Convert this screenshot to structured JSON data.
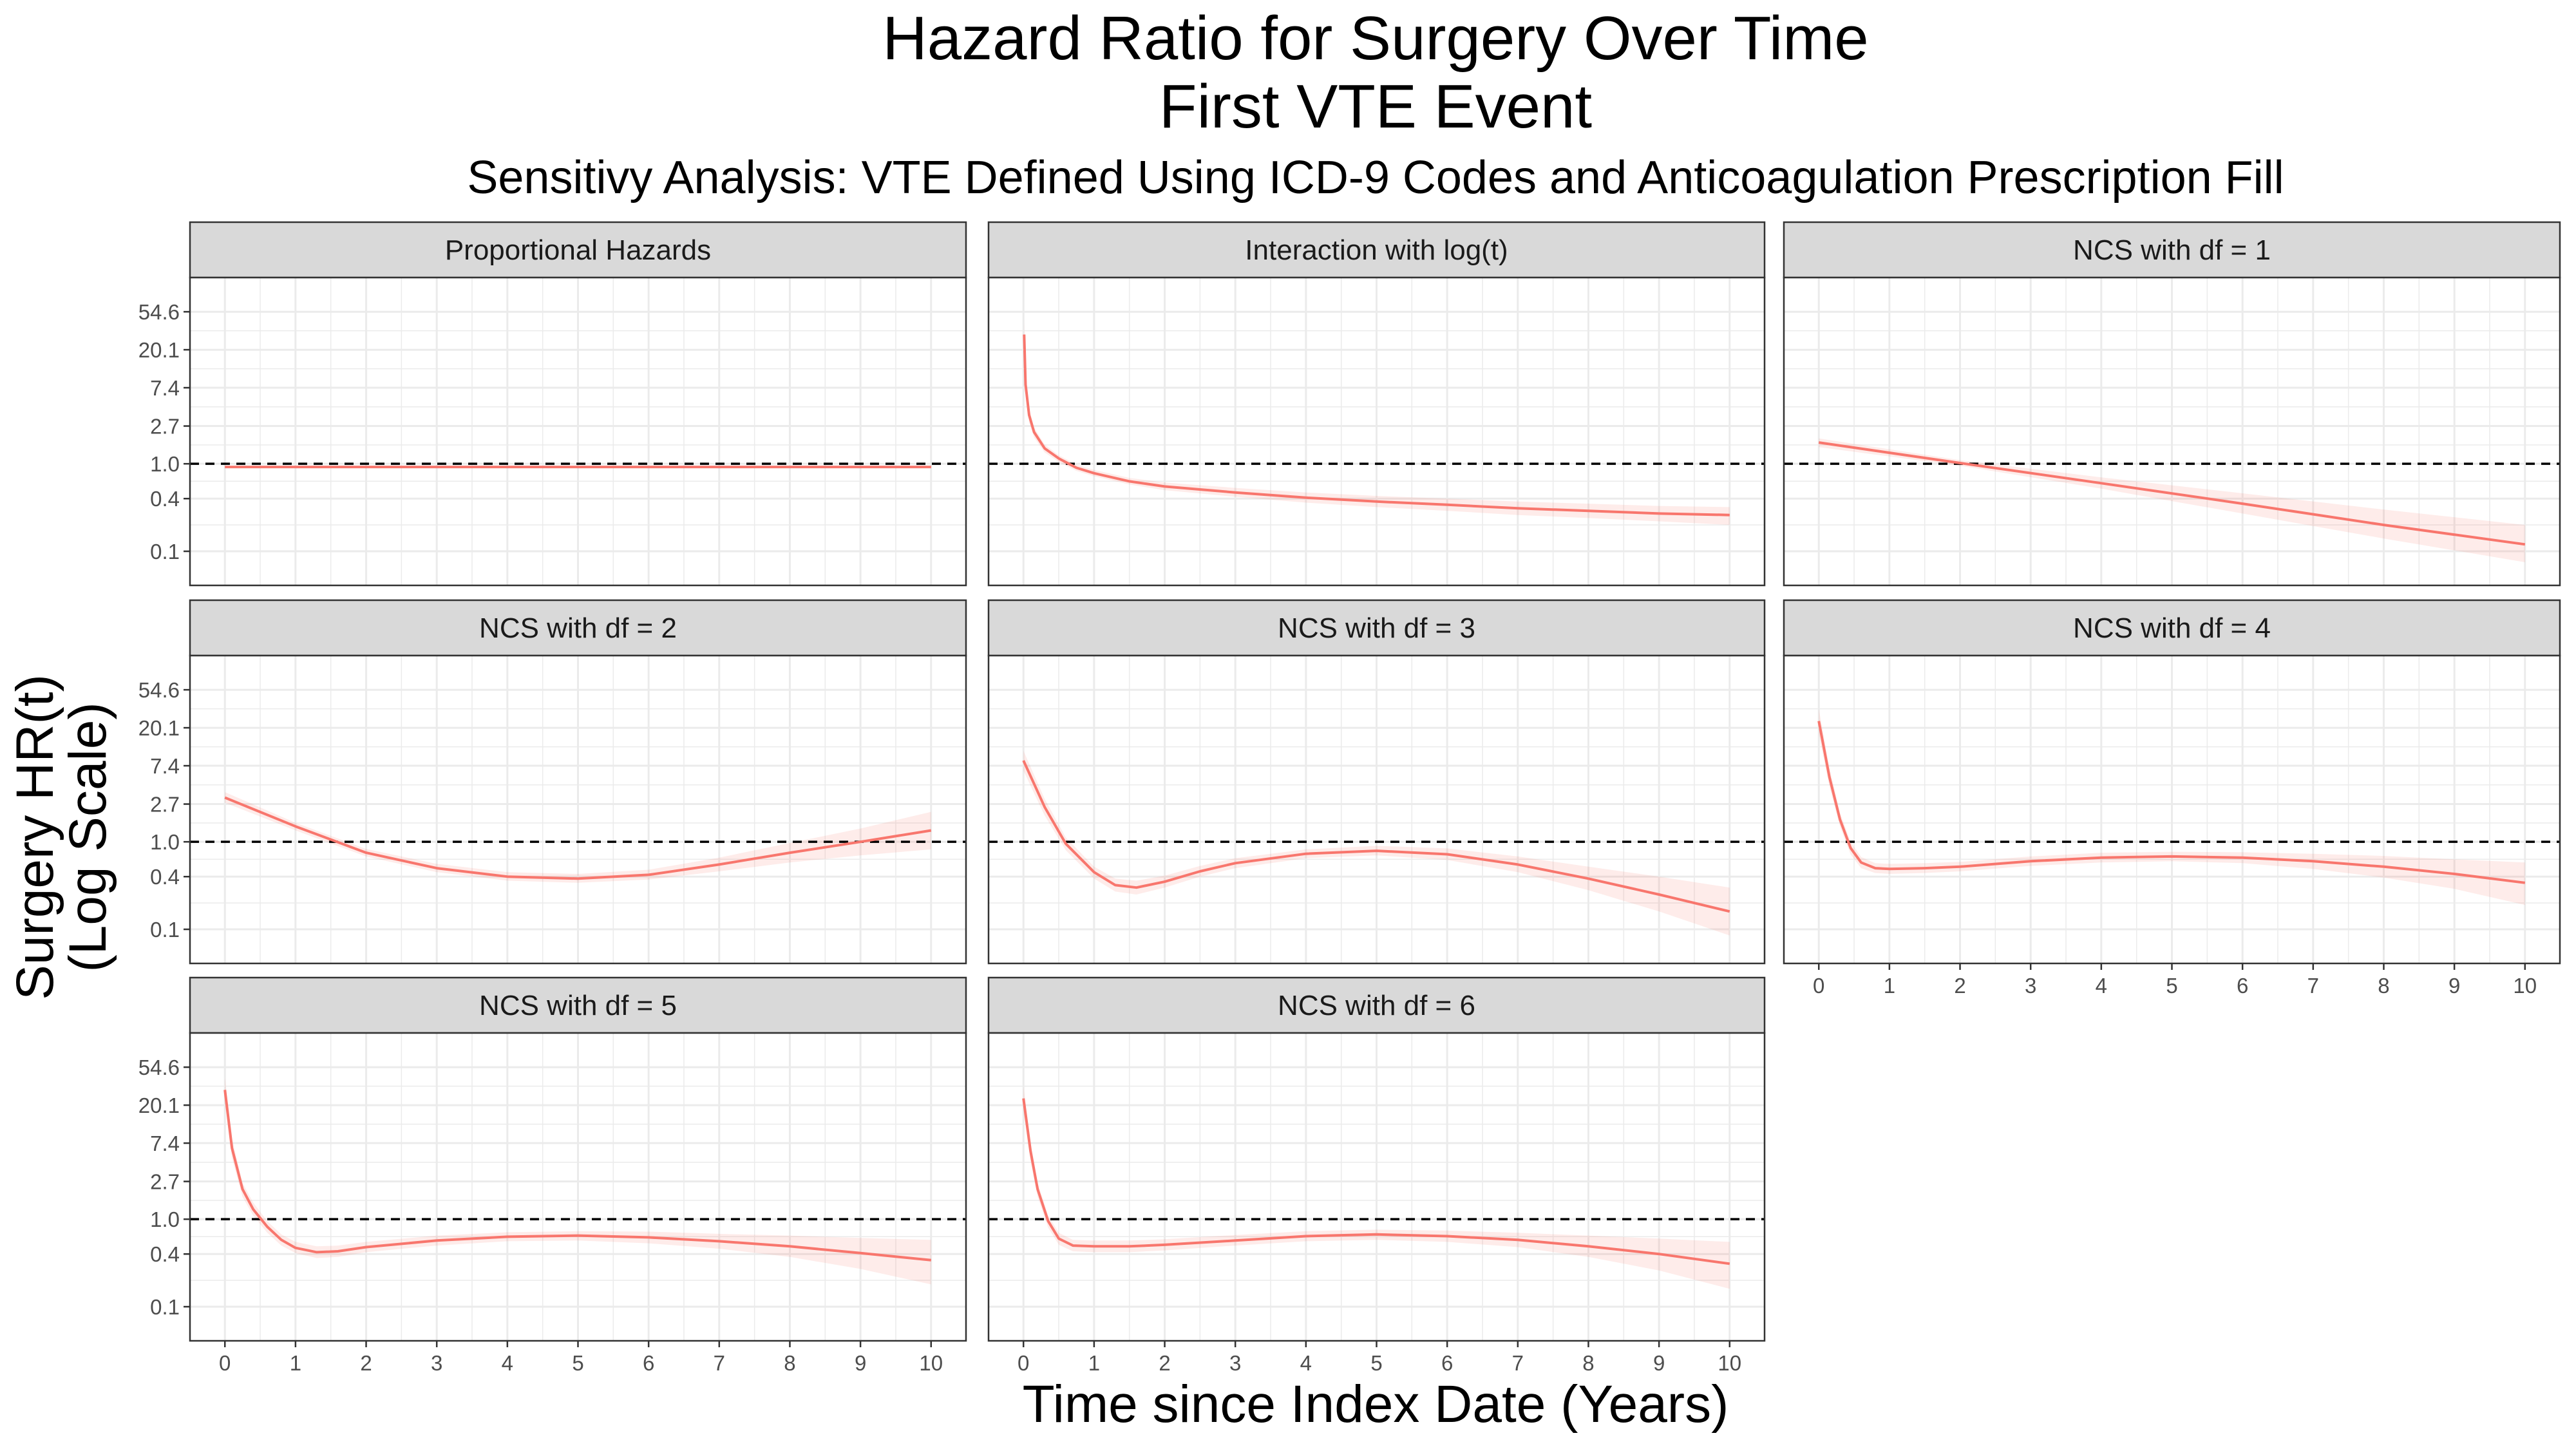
{
  "title_line1": "Hazard Ratio for Surgery Over Time",
  "title_line2": "First VTE Event",
  "subtitle": "Sensitivy Analysis: VTE Defined Using ICD-9 Codes and Anticoagulation Prescription Fill",
  "xlabel": "Time since Index Date (Years)",
  "ylabel_line1": "Surgery HR(t)",
  "ylabel_line2": "(Log Scale)",
  "colors": {
    "line": "#f8766d",
    "ribbon": "#f8766d",
    "strip_fill": "#d9d9d9",
    "reference": "#000000",
    "grid": "#ebebeb"
  },
  "chart_data": {
    "type": "line",
    "facet_layout": "3 columns, 3 rows (facet_wrap)",
    "y_scale": "log",
    "x_range": [
      0,
      10
    ],
    "y_range_log": [
      -3.2,
      4.9
    ],
    "x_ticks": [
      0,
      1,
      2,
      3,
      4,
      5,
      6,
      7,
      8,
      9,
      10
    ],
    "y_ticks": [
      {
        "label": "0.1",
        "value": 0.1
      },
      {
        "label": "0.4",
        "value": 0.4
      },
      {
        "label": "1.0",
        "value": 1.0
      },
      {
        "label": "2.7",
        "value": 2.7
      },
      {
        "label": "7.4",
        "value": 7.4
      },
      {
        "label": "20.1",
        "value": 20.1
      },
      {
        "label": "54.6",
        "value": 54.6
      }
    ],
    "reference_line": 1.0,
    "grid": true,
    "panels": [
      {
        "title": "Proportional Hazards",
        "x": [
          0,
          10
        ],
        "y": [
          0.92,
          0.92
        ],
        "lower": [
          0.89,
          0.89
        ],
        "upper": [
          0.95,
          0.95
        ]
      },
      {
        "title": "Interaction with log(t)",
        "x": [
          0.01,
          0.03,
          0.08,
          0.15,
          0.3,
          0.5,
          0.75,
          1,
          1.5,
          2,
          3,
          4,
          5,
          6,
          7,
          8,
          9,
          10
        ],
        "y": [
          30.0,
          8.0,
          3.6,
          2.3,
          1.5,
          1.15,
          0.9,
          0.78,
          0.63,
          0.55,
          0.47,
          0.41,
          0.37,
          0.34,
          0.31,
          0.29,
          0.27,
          0.26
        ],
        "lower": [
          20.0,
          6.2,
          3.0,
          2.0,
          1.35,
          1.05,
          0.83,
          0.72,
          0.58,
          0.5,
          0.42,
          0.36,
          0.32,
          0.29,
          0.26,
          0.24,
          0.22,
          0.2
        ],
        "upper": [
          45.0,
          10.5,
          4.3,
          2.6,
          1.66,
          1.25,
          0.98,
          0.85,
          0.69,
          0.61,
          0.53,
          0.47,
          0.43,
          0.4,
          0.37,
          0.35,
          0.33,
          0.32
        ]
      },
      {
        "title": "NCS with df = 1",
        "x": [
          0,
          2,
          4,
          6,
          8,
          10
        ],
        "y": [
          1.75,
          1.02,
          0.6,
          0.35,
          0.2,
          0.12
        ],
        "lower": [
          1.55,
          0.95,
          0.52,
          0.27,
          0.14,
          0.075
        ],
        "upper": [
          1.95,
          1.1,
          0.7,
          0.46,
          0.3,
          0.2
        ]
      },
      {
        "title": "NCS with df = 2",
        "x": [
          0,
          1,
          2,
          3,
          4,
          5,
          6,
          7,
          8,
          9,
          10
        ],
        "y": [
          3.2,
          1.5,
          0.75,
          0.5,
          0.4,
          0.38,
          0.42,
          0.55,
          0.75,
          1.0,
          1.35
        ],
        "lower": [
          2.8,
          1.35,
          0.68,
          0.45,
          0.36,
          0.34,
          0.37,
          0.46,
          0.58,
          0.7,
          0.82
        ],
        "upper": [
          3.7,
          1.65,
          0.83,
          0.56,
          0.45,
          0.43,
          0.48,
          0.66,
          0.97,
          1.42,
          2.2
        ]
      },
      {
        "title": "NCS with df = 3",
        "x": [
          0,
          0.3,
          0.6,
          1,
          1.3,
          1.6,
          2,
          2.5,
          3,
          4,
          5,
          6,
          7,
          8,
          9,
          10
        ],
        "y": [
          8.5,
          2.5,
          0.95,
          0.45,
          0.32,
          0.3,
          0.35,
          0.46,
          0.57,
          0.73,
          0.79,
          0.72,
          0.55,
          0.38,
          0.25,
          0.16
        ],
        "lower": [
          6.5,
          2.0,
          0.8,
          0.38,
          0.27,
          0.25,
          0.3,
          0.4,
          0.5,
          0.65,
          0.7,
          0.62,
          0.45,
          0.28,
          0.16,
          0.085
        ],
        "upper": [
          11.0,
          3.1,
          1.12,
          0.52,
          0.38,
          0.36,
          0.41,
          0.53,
          0.65,
          0.82,
          0.9,
          0.84,
          0.68,
          0.52,
          0.4,
          0.3
        ]
      },
      {
        "title": "NCS with df = 4",
        "x": [
          0,
          0.15,
          0.3,
          0.45,
          0.6,
          0.8,
          1,
          1.5,
          2,
          3,
          4,
          5,
          6,
          7,
          8,
          9,
          10
        ],
        "y": [
          24.0,
          5.5,
          1.8,
          0.85,
          0.58,
          0.5,
          0.49,
          0.5,
          0.52,
          0.6,
          0.66,
          0.68,
          0.66,
          0.6,
          0.52,
          0.43,
          0.34
        ],
        "lower": [
          17.0,
          4.3,
          1.5,
          0.72,
          0.5,
          0.44,
          0.43,
          0.44,
          0.46,
          0.53,
          0.58,
          0.6,
          0.57,
          0.49,
          0.39,
          0.29,
          0.19
        ],
        "upper": [
          33.0,
          7.0,
          2.15,
          1.0,
          0.67,
          0.57,
          0.56,
          0.57,
          0.59,
          0.68,
          0.75,
          0.77,
          0.76,
          0.73,
          0.69,
          0.63,
          0.58
        ]
      },
      {
        "title": "NCS with df = 5",
        "x": [
          0,
          0.1,
          0.25,
          0.4,
          0.6,
          0.8,
          1,
          1.3,
          1.6,
          2,
          3,
          4,
          5,
          6,
          7,
          8,
          9,
          10
        ],
        "y": [
          30.0,
          6.5,
          2.2,
          1.3,
          0.82,
          0.58,
          0.47,
          0.42,
          0.43,
          0.48,
          0.57,
          0.63,
          0.65,
          0.62,
          0.56,
          0.49,
          0.41,
          0.34
        ],
        "lower": [
          21.0,
          5.0,
          1.8,
          1.1,
          0.7,
          0.5,
          0.41,
          0.36,
          0.37,
          0.42,
          0.5,
          0.56,
          0.57,
          0.53,
          0.46,
          0.37,
          0.27,
          0.18
        ],
        "upper": [
          42.0,
          8.3,
          2.6,
          1.55,
          0.95,
          0.67,
          0.55,
          0.49,
          0.5,
          0.55,
          0.65,
          0.71,
          0.73,
          0.72,
          0.68,
          0.65,
          0.61,
          0.58
        ]
      },
      {
        "title": "NCS with df = 6",
        "x": [
          0,
          0.1,
          0.2,
          0.35,
          0.5,
          0.7,
          1,
          1.5,
          2,
          3,
          4,
          5,
          6,
          7,
          8,
          9,
          10
        ],
        "y": [
          24.0,
          6.0,
          2.2,
          0.95,
          0.6,
          0.5,
          0.49,
          0.49,
          0.51,
          0.57,
          0.64,
          0.67,
          0.64,
          0.58,
          0.49,
          0.4,
          0.31
        ],
        "lower": [
          17.0,
          4.6,
          1.8,
          0.8,
          0.51,
          0.43,
          0.42,
          0.42,
          0.44,
          0.5,
          0.56,
          0.58,
          0.55,
          0.48,
          0.37,
          0.26,
          0.16
        ],
        "upper": [
          33.0,
          7.6,
          2.6,
          1.1,
          0.7,
          0.58,
          0.57,
          0.57,
          0.59,
          0.66,
          0.73,
          0.76,
          0.74,
          0.7,
          0.65,
          0.6,
          0.55
        ]
      }
    ]
  }
}
